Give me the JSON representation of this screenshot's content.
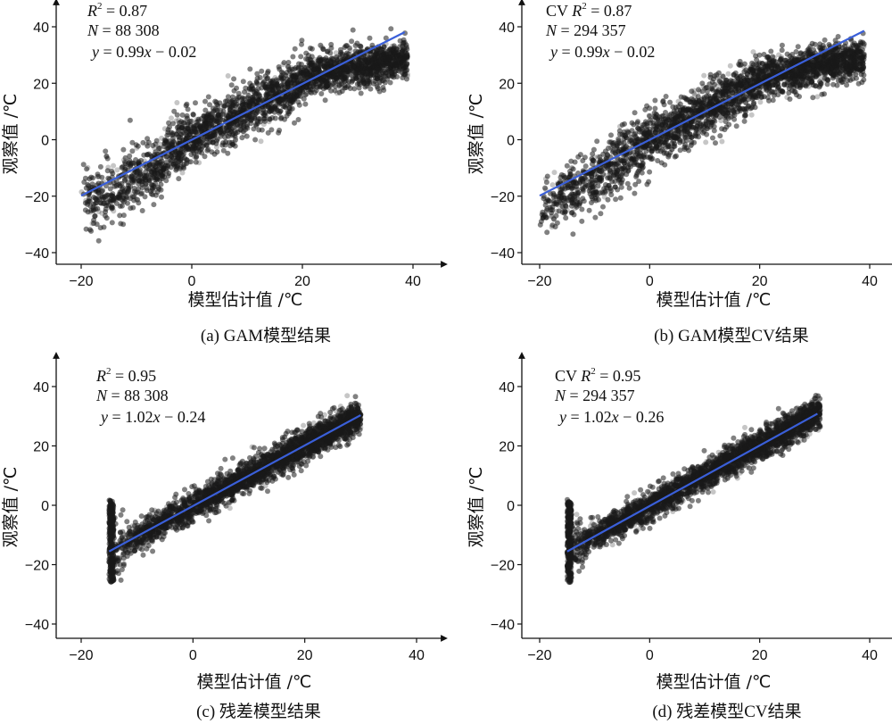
{
  "panels": [
    {
      "caption": "(a) GAM模型结果",
      "cv_prefix": "",
      "r2": "0.87",
      "n": "88 308",
      "eq_slope": "0.99",
      "eq_sign": "−",
      "eq_intercept": "0.02"
    },
    {
      "caption": "(b) GAM模型CV结果",
      "cv_prefix": "CV",
      "r2": "0.87",
      "n": "294 357",
      "eq_slope": "0.99",
      "eq_sign": "−",
      "eq_intercept": "0.02"
    },
    {
      "caption": "(c) 残差模型结果",
      "cv_prefix": "",
      "r2": "0.95",
      "n": "88 308",
      "eq_slope": "1.02",
      "eq_sign": "−",
      "eq_intercept": "0.24"
    },
    {
      "caption": "(d) 残差模型CV结果",
      "cv_prefix": "CV",
      "r2": "0.95",
      "n": "294 357",
      "eq_slope": "1.02",
      "eq_sign": "−",
      "eq_intercept": "0.26"
    }
  ],
  "chart_data": [
    {
      "type": "scatter",
      "xlabel": "模型估计值 /℃",
      "ylabel": "观察值 /℃",
      "x_ticks": [
        -20,
        0,
        20,
        40
      ],
      "y_ticks": [
        -40,
        -20,
        0,
        20,
        40
      ],
      "xlim": [
        -22,
        42
      ],
      "ylim": [
        -42,
        42
      ],
      "point_color": "#1a1a1a",
      "fit_line_color": "#3a5fd9",
      "fit_line": {
        "slope": 0.99,
        "intercept": -0.02,
        "x_range": [
          -20,
          38.5
        ]
      },
      "cloud": {
        "x_range": [
          -20,
          39
        ],
        "x_peak": 24
      }
    },
    {
      "type": "scatter",
      "xlabel": "模型估计值 /℃",
      "ylabel": "观察值 /℃",
      "x_ticks": [
        -20,
        0,
        20,
        40
      ],
      "y_ticks": [
        -40,
        -20,
        0,
        20,
        40
      ],
      "xlim": [
        -22,
        42
      ],
      "ylim": [
        -42,
        42
      ],
      "point_color": "#1a1a1a",
      "fit_line_color": "#3a5fd9",
      "fit_line": {
        "slope": 0.99,
        "intercept": -0.02,
        "x_range": [
          -20,
          39
        ]
      },
      "cloud": {
        "x_range": [
          -20,
          39
        ],
        "x_peak": 24
      }
    },
    {
      "type": "scatter",
      "xlabel": "模型估计值 /℃",
      "ylabel": "观察值 /℃",
      "x_ticks": [
        -20,
        0,
        20,
        40
      ],
      "y_ticks": [
        -40,
        -20,
        0,
        20,
        40
      ],
      "xlim": [
        -22,
        42
      ],
      "ylim": [
        -42,
        42
      ],
      "point_color": "#1a1a1a",
      "fit_line_color": "#3a5fd9",
      "fit_line": {
        "slope": 1.02,
        "intercept": -0.24,
        "x_range": [
          -15,
          30
        ]
      },
      "cloud": {
        "x_range": [
          -15,
          30
        ],
        "x_peak": 20
      }
    },
    {
      "type": "scatter",
      "xlabel": "模型估计值 /℃",
      "ylabel": "观察值 /℃",
      "x_ticks": [
        -20,
        0,
        20,
        40
      ],
      "y_ticks": [
        -40,
        -20,
        0,
        20,
        40
      ],
      "xlim": [
        -22,
        42
      ],
      "ylim": [
        -42,
        42
      ],
      "point_color": "#1a1a1a",
      "fit_line_color": "#3a5fd9",
      "fit_line": {
        "slope": 1.02,
        "intercept": -0.26,
        "x_range": [
          -15,
          30.5
        ]
      },
      "cloud": {
        "x_range": [
          -15,
          31
        ],
        "x_peak": 20
      }
    }
  ]
}
